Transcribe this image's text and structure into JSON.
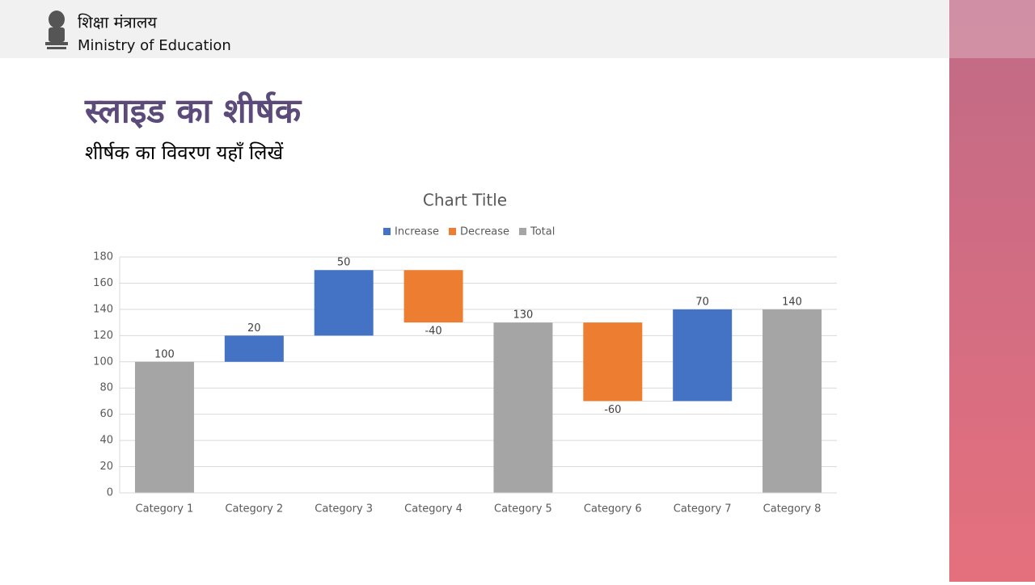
{
  "header": {
    "org_hindi": "शिक्षा मंत्रालय",
    "org_english": "Ministry of Education"
  },
  "slide": {
    "title": "स्लाइड का शीर्षक",
    "subtitle": "शीर्षक का विवरण यहाँ लिखें"
  },
  "chart_data": {
    "type": "waterfall",
    "title": "Chart Title",
    "categories": [
      "Category 1",
      "Category 2",
      "Category 3",
      "Category 4",
      "Category 5",
      "Category 6",
      "Category 7",
      "Category 8"
    ],
    "series": [
      {
        "name": "Increase",
        "color": "#4472c4",
        "values": [
          null,
          20,
          50,
          null,
          null,
          null,
          70,
          null
        ]
      },
      {
        "name": "Decrease",
        "color": "#ed7d31",
        "values": [
          null,
          null,
          null,
          -40,
          null,
          -60,
          null,
          null
        ]
      },
      {
        "name": "Total",
        "color": "#a5a5a5",
        "values": [
          100,
          null,
          null,
          null,
          130,
          null,
          null,
          140
        ]
      }
    ],
    "ylim": [
      0,
      180
    ],
    "yticks": [
      0,
      20,
      40,
      60,
      80,
      100,
      120,
      140,
      160,
      180
    ],
    "grid": true,
    "legend": "top"
  }
}
